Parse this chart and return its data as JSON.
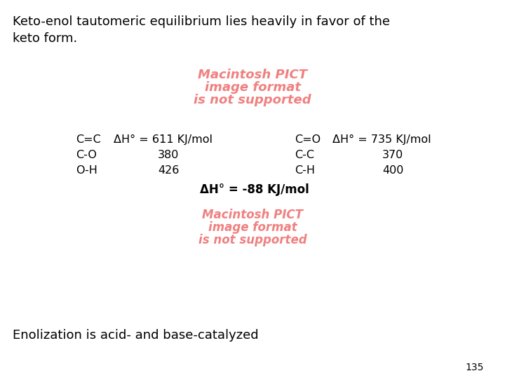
{
  "title_line1": "Keto-enol tautomeric equilibrium lies heavily in favor of the",
  "title_line2": "keto form.",
  "pict_color": "#f08080",
  "pict_line1": "Macintosh PICT",
  "pict_line2": "image format",
  "pict_line3": "is not supported",
  "left_labels": [
    "C=C",
    "C-O",
    "O-H"
  ],
  "left_dH": "ΔH° = 611 KJ/mol",
  "left_vals": [
    "380",
    "426"
  ],
  "right_labels": [
    "C=O",
    "C-C",
    "C-H"
  ],
  "right_dH": "ΔH° = 735 KJ/mol",
  "right_vals": [
    "370",
    "400"
  ],
  "delta_result": "ΔH° = -88 KJ/mol",
  "bottom_text": "Enolization is acid- and base-catalyzed",
  "page_number": "135",
  "bg_color": "#ffffff",
  "text_color": "#000000"
}
